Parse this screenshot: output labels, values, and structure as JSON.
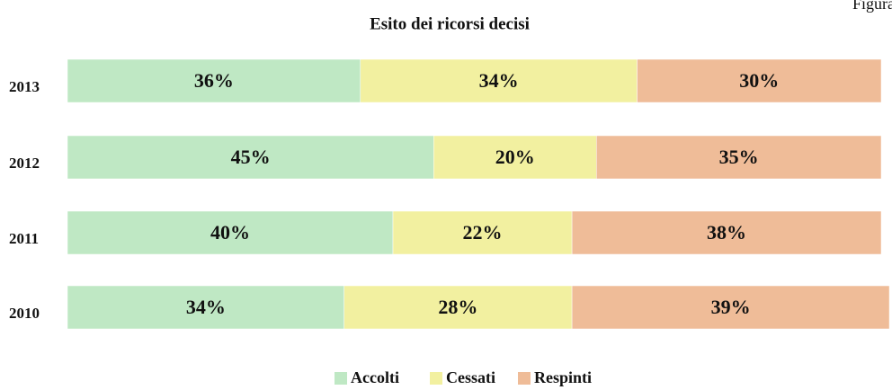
{
  "chart_data": {
    "type": "stacked_bar_horizontal",
    "title": "Esito dei ricorsi decisi",
    "corner_label": "Figura",
    "categories": [
      "2013",
      "2012",
      "2011",
      "2010"
    ],
    "series": [
      {
        "name": "Accolti",
        "color": "#bfe8c4",
        "values": [
          36,
          45,
          40,
          34
        ],
        "value_labels": [
          "36%",
          "45%",
          "40%",
          "34%"
        ]
      },
      {
        "name": "Cessati",
        "color": "#f2f0a0",
        "values": [
          34,
          20,
          22,
          28
        ],
        "value_labels": [
          "34%",
          "20%",
          "22%",
          "28%"
        ]
      },
      {
        "name": "Respinti",
        "color": "#efbc98",
        "values": [
          30,
          35,
          38,
          39
        ],
        "value_labels": [
          "30%",
          "35%",
          "38%",
          "39%"
        ]
      }
    ],
    "xlim": [
      0,
      100
    ],
    "legend": "bottom"
  }
}
